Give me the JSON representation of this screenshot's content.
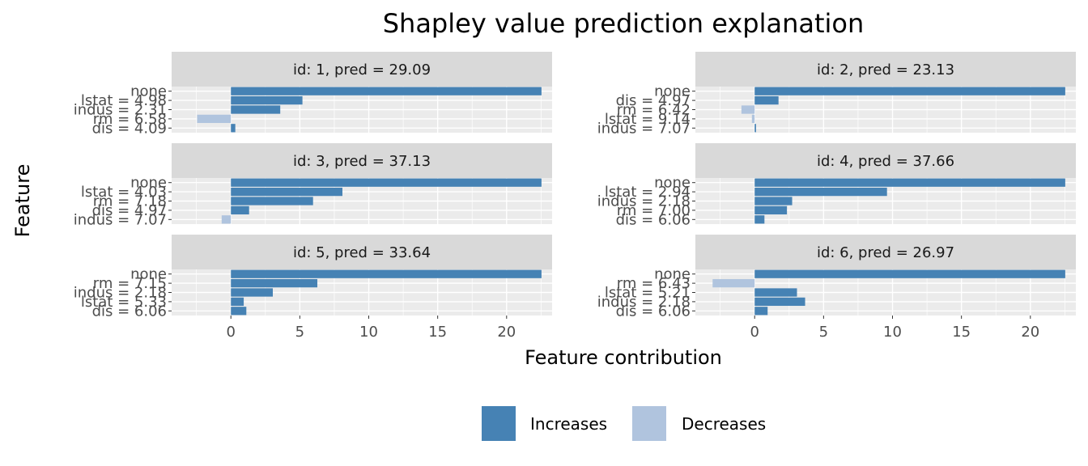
{
  "chart_data": {
    "type": "bar",
    "orientation": "horizontal",
    "title": "Shapley value prediction explanation",
    "xlabel": "Feature contribution",
    "ylabel": "Feature",
    "xlim": [
      -4.3,
      23.3
    ],
    "xticks": [
      0,
      5,
      10,
      15,
      20
    ],
    "grid": true,
    "colors": {
      "Increases": "#4682b4",
      "Decreases": "#b0c4de"
    },
    "legend": {
      "position": "bottom",
      "entries": [
        {
          "key": "Increases",
          "label": "Increases"
        },
        {
          "key": "Decreases",
          "label": "Decreases"
        }
      ]
    },
    "panels": [
      {
        "strip": "id: 1, pred = 29.09",
        "bars": [
          {
            "label": "none",
            "value": 22.53,
            "sign": "Increases"
          },
          {
            "label": "lstat = 4.98",
            "value": 5.19,
            "sign": "Increases"
          },
          {
            "label": "indus = 2.31",
            "value": 3.58,
            "sign": "Increases"
          },
          {
            "label": "rm = 6.58",
            "value": -2.45,
            "sign": "Decreases"
          },
          {
            "label": "dis = 4.09",
            "value": 0.32,
            "sign": "Increases"
          }
        ]
      },
      {
        "strip": "id: 2, pred = 23.13",
        "bars": [
          {
            "label": "none",
            "value": 22.53,
            "sign": "Increases"
          },
          {
            "label": "dis = 4.97",
            "value": 1.73,
            "sign": "Increases"
          },
          {
            "label": "rm = 6.42",
            "value": -0.96,
            "sign": "Decreases"
          },
          {
            "label": "lstat = 9.14",
            "value": -0.2,
            "sign": "Decreases"
          },
          {
            "label": "indus = 7.07",
            "value": 0.1,
            "sign": "Increases"
          }
        ]
      },
      {
        "strip": "id: 3, pred = 37.13",
        "bars": [
          {
            "label": "none",
            "value": 22.53,
            "sign": "Increases"
          },
          {
            "label": "lstat = 4.03",
            "value": 8.09,
            "sign": "Increases"
          },
          {
            "label": "rm = 7.18",
            "value": 5.96,
            "sign": "Increases"
          },
          {
            "label": "dis = 4.97",
            "value": 1.32,
            "sign": "Increases"
          },
          {
            "label": "indus = 7.07",
            "value": -0.67,
            "sign": "Decreases"
          }
        ]
      },
      {
        "strip": "id: 4, pred = 37.66",
        "bars": [
          {
            "label": "none",
            "value": 22.53,
            "sign": "Increases"
          },
          {
            "label": "lstat = 2.94",
            "value": 9.6,
            "sign": "Increases"
          },
          {
            "label": "indus = 2.18",
            "value": 2.72,
            "sign": "Increases"
          },
          {
            "label": "rm = 7.00",
            "value": 2.34,
            "sign": "Increases"
          },
          {
            "label": "dis = 6.06",
            "value": 0.71,
            "sign": "Increases"
          }
        ]
      },
      {
        "strip": "id: 5, pred = 33.64",
        "bars": [
          {
            "label": "none",
            "value": 22.53,
            "sign": "Increases"
          },
          {
            "label": "rm = 7.15",
            "value": 6.27,
            "sign": "Increases"
          },
          {
            "label": "indus = 2.18",
            "value": 3.04,
            "sign": "Increases"
          },
          {
            "label": "lstat = 5.33",
            "value": 0.93,
            "sign": "Increases"
          },
          {
            "label": "dis = 6.06",
            "value": 1.12,
            "sign": "Increases"
          }
        ]
      },
      {
        "strip": "id: 6, pred = 26.97",
        "bars": [
          {
            "label": "none",
            "value": 22.53,
            "sign": "Increases"
          },
          {
            "label": "rm = 6.43",
            "value": -3.05,
            "sign": "Decreases"
          },
          {
            "label": "lstat = 5.21",
            "value": 3.07,
            "sign": "Increases"
          },
          {
            "label": "indus = 2.18",
            "value": 3.66,
            "sign": "Increases"
          },
          {
            "label": "dis = 6.06",
            "value": 0.94,
            "sign": "Increases"
          }
        ]
      }
    ]
  }
}
